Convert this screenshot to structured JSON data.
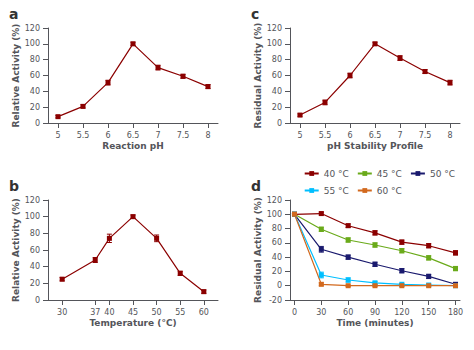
{
  "chart_data": [
    {
      "type": "line",
      "annotation": "a",
      "xlabel": "Reaction pH",
      "ylabel": "Relative Activity (%)",
      "x": [
        5,
        5.5,
        6,
        6.5,
        7,
        7.5,
        8
      ],
      "values": [
        8,
        21,
        51,
        100,
        70,
        59,
        46
      ],
      "yerr": [
        1.5,
        2,
        3,
        2,
        3,
        2.5,
        2.5
      ],
      "color": "#8b0000",
      "marker": "square",
      "grid": false,
      "xlim": [
        4.8,
        8.2
      ],
      "ylim": [
        0,
        120
      ],
      "xticks": [
        5,
        5.5,
        6,
        6.5,
        7,
        7.5,
        8
      ],
      "yticks": [
        0,
        20,
        40,
        60,
        80,
        100,
        120
      ]
    },
    {
      "type": "line",
      "annotation": "b",
      "xlabel": "Temperature (°C)",
      "ylabel": "Relative Activity (%)",
      "x": [
        30,
        37,
        40,
        45,
        50,
        55,
        60
      ],
      "values": [
        25,
        48,
        74,
        100,
        74,
        32,
        10
      ],
      "yerr": [
        2,
        3,
        5,
        2,
        4,
        2.5,
        2
      ],
      "color": "#8b0000",
      "marker": "square",
      "grid": false,
      "xlim": [
        27,
        63
      ],
      "ylim": [
        0,
        120
      ],
      "xticks": [
        30,
        37,
        40,
        45,
        50,
        55,
        60
      ],
      "yticks": [
        0,
        20,
        40,
        60,
        80,
        100,
        120
      ]
    },
    {
      "type": "line",
      "annotation": "c",
      "xlabel": "pH Stability Profile",
      "ylabel": "Residual Activity (%)",
      "x": [
        5,
        5.5,
        6,
        6.5,
        7,
        7.5,
        8
      ],
      "values": [
        10,
        26,
        60,
        100,
        82,
        65,
        51
      ],
      "yerr": [
        1.5,
        3,
        3,
        2,
        3,
        2.5,
        3
      ],
      "color": "#8b0000",
      "marker": "square",
      "grid": false,
      "xlim": [
        4.8,
        8.2
      ],
      "ylim": [
        0,
        120
      ],
      "xticks": [
        5,
        5.5,
        6,
        6.5,
        7,
        7.5,
        8
      ],
      "yticks": [
        0,
        20,
        40,
        60,
        80,
        100,
        120
      ]
    },
    {
      "type": "line",
      "annotation": "d",
      "xlabel": "Time (minutes)",
      "ylabel": "Residual Activity (%)",
      "x": [
        0,
        30,
        60,
        90,
        120,
        150,
        180
      ],
      "series": [
        {
          "name": "40 °C",
          "color": "#8b0000",
          "values": [
            100,
            101,
            84,
            74,
            61,
            56,
            46
          ],
          "yerr": [
            1,
            2,
            2.5,
            3,
            3,
            3,
            3
          ]
        },
        {
          "name": "45 °C",
          "color": "#6aaa1a",
          "values": [
            100,
            79,
            64,
            57,
            49,
            39,
            24
          ],
          "yerr": [
            1,
            3,
            3,
            3,
            3,
            3,
            3
          ]
        },
        {
          "name": "50 °C",
          "color": "#1a1a6e",
          "values": [
            100,
            51,
            40,
            30,
            21,
            13,
            2
          ],
          "yerr": [
            1,
            4,
            3,
            3,
            3,
            3,
            2
          ]
        },
        {
          "name": "55 °C",
          "color": "#00bfff",
          "values": [
            100,
            15,
            8,
            4,
            2,
            1,
            0
          ],
          "yerr": [
            1,
            4,
            3,
            2,
            1,
            1,
            1
          ]
        },
        {
          "name": "60 °C",
          "color": "#d2691e",
          "values": [
            100,
            2,
            0,
            0,
            0,
            0,
            0
          ],
          "yerr": [
            1,
            2,
            1,
            1,
            1,
            1,
            1
          ]
        }
      ],
      "marker": "square",
      "legend": "upper right",
      "grid": false,
      "xlim": [
        -5,
        185
      ],
      "ylim": [
        -20,
        120
      ],
      "xticks": [
        0,
        30,
        60,
        90,
        120,
        150,
        180
      ],
      "yticks": [
        -20,
        0,
        20,
        40,
        60,
        80,
        100,
        120
      ]
    }
  ]
}
